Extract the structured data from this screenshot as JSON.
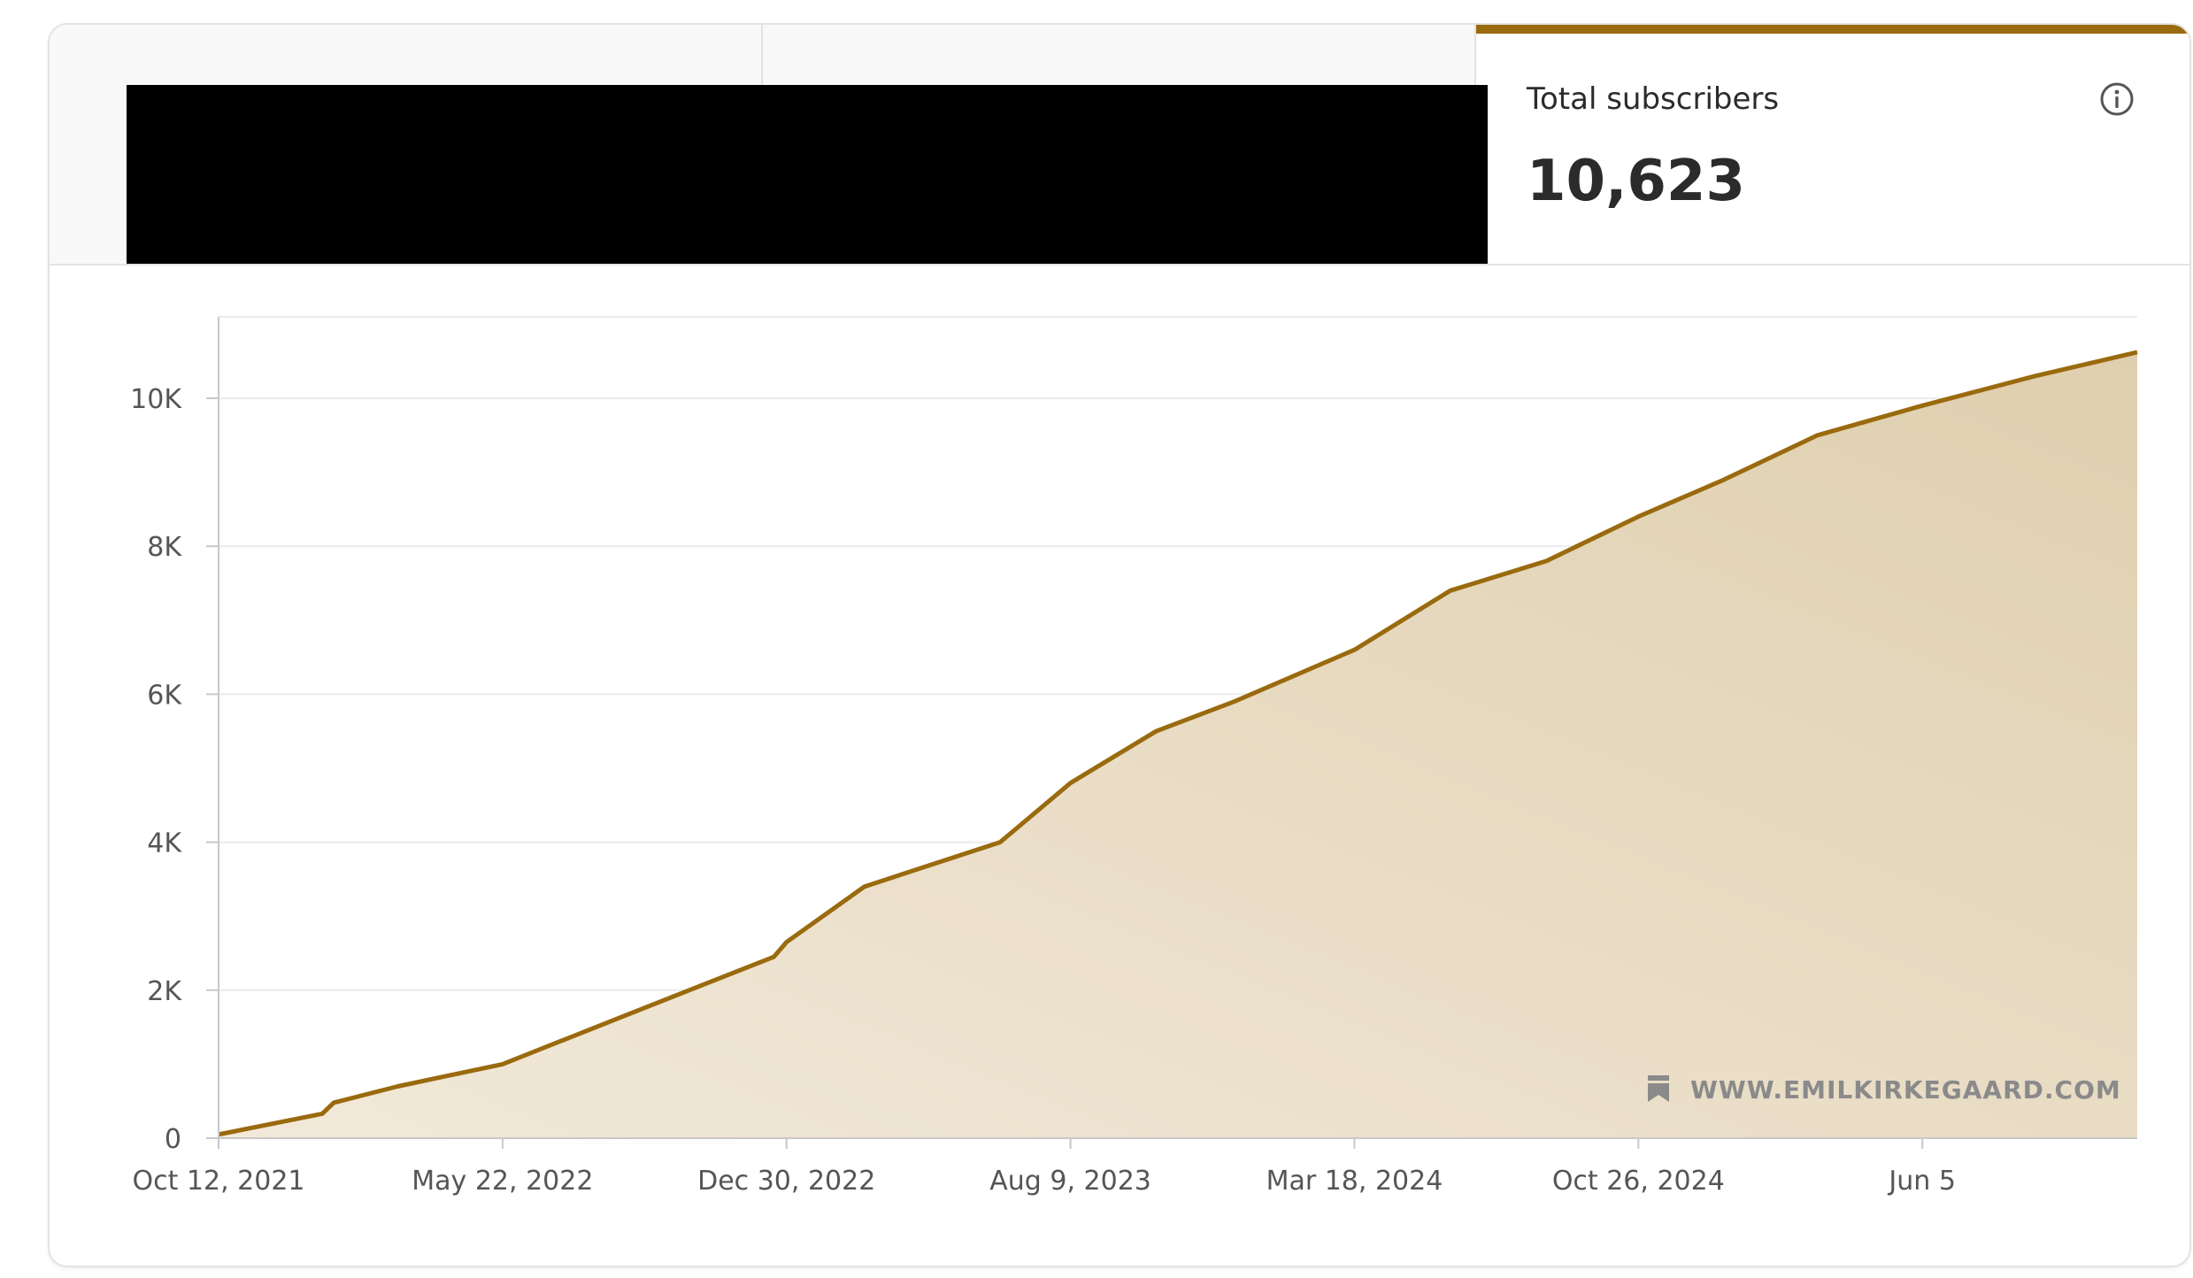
{
  "stat": {
    "label": "Total subscribers",
    "value": "10,623"
  },
  "watermark": "WWW.EMILKIRKEGAARD.COM",
  "colors": {
    "accent": "#9a6a0e",
    "fill_light": "#f2e9da",
    "fill_dark": "#dfcfae",
    "grid": "#ececec"
  },
  "chart_data": {
    "type": "area",
    "title": "",
    "xlabel": "",
    "ylabel": "",
    "x_ticks": [
      "Oct 12, 2021",
      "May 22, 2022",
      "Dec 30, 2022",
      "Aug 9, 2023",
      "Mar 18, 2024",
      "Oct 26, 2024",
      "Jun 5"
    ],
    "y_ticks": [
      "0",
      "2K",
      "4K",
      "6K",
      "8K",
      "10K"
    ],
    "ylim": [
      0,
      11100
    ],
    "grid": true,
    "series": [
      {
        "values": [
          {
            "x": "2021-10-12",
            "y": 50
          },
          {
            "x": "2022-01-01",
            "y": 330
          },
          {
            "x": "2022-01-10",
            "y": 480
          },
          {
            "x": "2022-03-01",
            "y": 700
          },
          {
            "x": "2022-05-22",
            "y": 1000
          },
          {
            "x": "2022-09-01",
            "y": 1700
          },
          {
            "x": "2022-12-20",
            "y": 2450
          },
          {
            "x": "2022-12-30",
            "y": 2650
          },
          {
            "x": "2023-03-01",
            "y": 3400
          },
          {
            "x": "2023-06-15",
            "y": 4000
          },
          {
            "x": "2023-08-09",
            "y": 4800
          },
          {
            "x": "2023-10-15",
            "y": 5500
          },
          {
            "x": "2023-12-15",
            "y": 5900
          },
          {
            "x": "2024-03-18",
            "y": 6600
          },
          {
            "x": "2024-06-01",
            "y": 7400
          },
          {
            "x": "2024-08-15",
            "y": 7800
          },
          {
            "x": "2024-10-26",
            "y": 8400
          },
          {
            "x": "2025-01-01",
            "y": 8900
          },
          {
            "x": "2025-03-15",
            "y": 9500
          },
          {
            "x": "2025-06-05",
            "y": 9900
          },
          {
            "x": "2025-09-01",
            "y": 10300
          },
          {
            "x": "2025-11-20",
            "y": 10623
          }
        ]
      }
    ]
  }
}
